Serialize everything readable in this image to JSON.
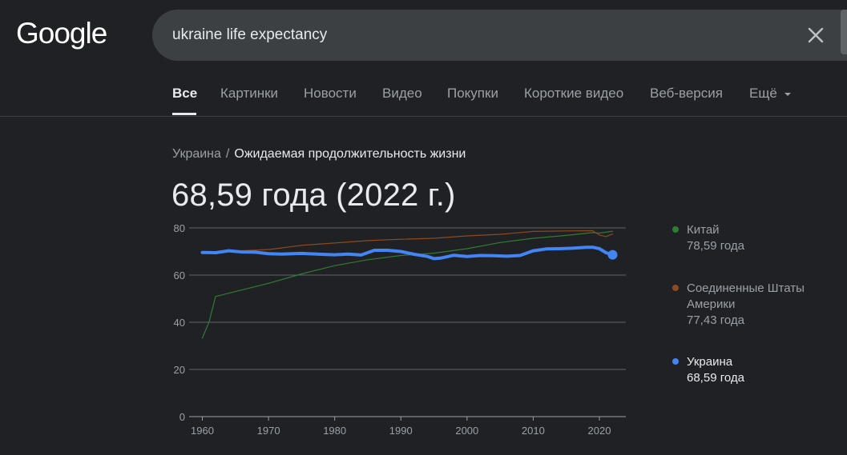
{
  "logo": {
    "text": "Google"
  },
  "search": {
    "query": "ukraine life expectancy"
  },
  "tabs": [
    {
      "label": "Все",
      "active": true
    },
    {
      "label": "Картинки"
    },
    {
      "label": "Новости"
    },
    {
      "label": "Видео"
    },
    {
      "label": "Покупки"
    },
    {
      "label": "Короткие видео"
    },
    {
      "label": "Веб-версия"
    },
    {
      "label": "Ещё"
    }
  ],
  "breadcrumb": {
    "parent": "Украина",
    "separator": "/",
    "current": "Ожидаемая продолжительность жизни"
  },
  "headline": {
    "value": "68,59 года (2022 г.)"
  },
  "legend": [
    {
      "name": "Китай",
      "value": "78,59 года",
      "color": "#2e7d32"
    },
    {
      "name": "Соединенные Штаты Америки",
      "value": "77,43 года",
      "color": "#8d4a1f"
    },
    {
      "name": "Украина",
      "value": "68,59 года",
      "color": "#4285f4",
      "selected": true
    }
  ],
  "colors": {
    "background": "#202124",
    "china": "#2e7d32",
    "usa": "#8d4a1f",
    "ukraine": "#4285f4",
    "grid": "#5f6368",
    "text_secondary": "#9aa0a6"
  },
  "chart_data": {
    "type": "line",
    "xlim": [
      1958,
      2024
    ],
    "ylim": [
      0,
      80
    ],
    "yticks": [
      0,
      20,
      40,
      60,
      80
    ],
    "xticks": [
      1960,
      1970,
      1980,
      1990,
      2000,
      2010,
      2020
    ],
    "grid": true,
    "legend_position": "right",
    "series": [
      {
        "name": "Китай",
        "key": "china",
        "points": [
          [
            1960,
            33.3
          ],
          [
            1961,
            40
          ],
          [
            1962,
            50.9
          ],
          [
            1965,
            53
          ],
          [
            1970,
            56.5
          ],
          [
            1975,
            60.5
          ],
          [
            1980,
            64
          ],
          [
            1985,
            66.5
          ],
          [
            1990,
            68.3
          ],
          [
            1995,
            69.3
          ],
          [
            2000,
            71.2
          ],
          [
            2005,
            73.8
          ],
          [
            2010,
            75.6
          ],
          [
            2015,
            76.8
          ],
          [
            2019,
            78
          ],
          [
            2020,
            77.8
          ],
          [
            2021,
            78.2
          ],
          [
            2022,
            78.59
          ]
        ]
      },
      {
        "name": "Соединенные Штаты Америки",
        "key": "usa",
        "points": [
          [
            1960,
            69.8
          ],
          [
            1965,
            70.2
          ],
          [
            1970,
            70.8
          ],
          [
            1975,
            72.6
          ],
          [
            1980,
            73.6
          ],
          [
            1985,
            74.6
          ],
          [
            1990,
            75.2
          ],
          [
            1995,
            75.6
          ],
          [
            2000,
            76.6
          ],
          [
            2005,
            77.3
          ],
          [
            2010,
            78.5
          ],
          [
            2015,
            78.7
          ],
          [
            2019,
            78.8
          ],
          [
            2020,
            77
          ],
          [
            2021,
            76.3
          ],
          [
            2022,
            77.43
          ]
        ]
      },
      {
        "name": "Украина",
        "key": "ukraine",
        "points": [
          [
            1960,
            69.6
          ],
          [
            1962,
            69.5
          ],
          [
            1964,
            70.3
          ],
          [
            1966,
            69.8
          ],
          [
            1968,
            69.7
          ],
          [
            1970,
            69.1
          ],
          [
            1972,
            68.9
          ],
          [
            1975,
            69.2
          ],
          [
            1978,
            68.8
          ],
          [
            1980,
            68.6
          ],
          [
            1982,
            68.9
          ],
          [
            1984,
            68.5
          ],
          [
            1986,
            70.5
          ],
          [
            1988,
            70.5
          ],
          [
            1990,
            70.0
          ],
          [
            1992,
            68.8
          ],
          [
            1994,
            67.9
          ],
          [
            1995,
            67.0
          ],
          [
            1996,
            67.2
          ],
          [
            1998,
            68.4
          ],
          [
            2000,
            67.9
          ],
          [
            2002,
            68.3
          ],
          [
            2004,
            68.2
          ],
          [
            2006,
            68.0
          ],
          [
            2008,
            68.3
          ],
          [
            2010,
            70.3
          ],
          [
            2012,
            71.1
          ],
          [
            2014,
            71.2
          ],
          [
            2016,
            71.4
          ],
          [
            2018,
            71.8
          ],
          [
            2019,
            71.8
          ],
          [
            2020,
            71.2
          ],
          [
            2021,
            69.5
          ],
          [
            2022,
            68.59
          ]
        ]
      }
    ]
  }
}
